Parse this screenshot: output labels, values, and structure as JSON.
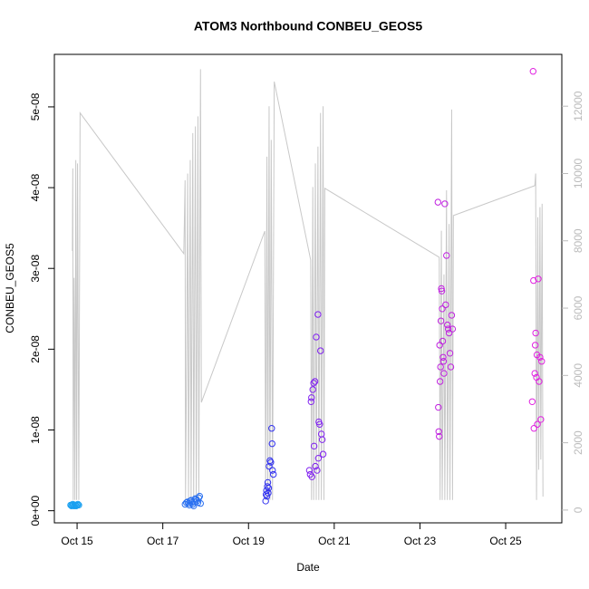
{
  "chart_data": {
    "type": "scatter",
    "title": "ATOM3 Northbound CONBEU_GEOS5",
    "x_label": "Date",
    "y_label": "CONBEU_GEOS5",
    "xlim": [
      14.47,
      26.31
    ],
    "xticks": [
      {
        "value": 15,
        "label": "Oct 15"
      },
      {
        "value": 17,
        "label": "Oct 17"
      },
      {
        "value": 19,
        "label": "Oct 19"
      },
      {
        "value": 21,
        "label": "Oct 21"
      },
      {
        "value": 23,
        "label": "Oct 23"
      },
      {
        "value": 25,
        "label": "Oct 25"
      }
    ],
    "ylim": [
      -1.5e-09,
      5.65e-08
    ],
    "yticks": [
      {
        "value": 0,
        "label": "0e+00"
      },
      {
        "value": 1e-08,
        "label": "1e-08"
      },
      {
        "value": 2e-08,
        "label": "2e-08"
      },
      {
        "value": 3e-08,
        "label": "3e-08"
      },
      {
        "value": 4e-08,
        "label": "4e-08"
      },
      {
        "value": 5e-08,
        "label": "5e-08"
      }
    ],
    "y2lim": [
      -380,
      13540
    ],
    "y2ticks": [
      0,
      2000,
      4000,
      6000,
      8000,
      10000,
      12000
    ],
    "y2_color": "#bbbbbb",
    "series": [
      {
        "style": "line",
        "axis": "y2",
        "color": "#c8c8c8",
        "x": [
          14.89,
          14.9,
          14.91,
          14.93,
          14.95,
          14.97,
          14.99,
          15.01,
          15.04,
          15.07,
          17.49,
          17.52,
          17.53,
          17.56,
          17.58,
          17.6,
          17.64,
          17.66,
          17.7,
          17.72,
          17.76,
          17.78,
          17.82,
          17.84,
          17.88,
          17.9,
          19.38,
          19.4,
          19.43,
          19.45,
          19.48,
          19.5,
          19.53,
          19.56,
          19.6,
          20.45,
          20.47,
          20.5,
          20.52,
          20.56,
          20.58,
          20.62,
          20.64,
          20.68,
          20.7,
          20.74,
          20.76,
          20.78,
          23.45,
          23.47,
          23.5,
          23.52,
          23.56,
          23.58,
          23.62,
          23.64,
          23.68,
          23.7,
          23.74,
          23.76,
          23.78,
          25.68,
          25.7,
          25.72,
          25.75,
          25.77,
          25.8,
          25.82,
          25.85,
          25.87
        ],
        "values": [
          7700,
          10150,
          300,
          6900,
          300,
          10400,
          300,
          10300,
          300,
          11800,
          7620,
          9800,
          300,
          5300,
          10000,
          300,
          10400,
          300,
          11200,
          300,
          11400,
          300,
          11700,
          300,
          13100,
          3200,
          8290,
          300,
          10500,
          300,
          12000,
          300,
          11000,
          300,
          12730,
          7430,
          300,
          9600,
          300,
          10300,
          300,
          10800,
          300,
          11800,
          300,
          12000,
          300,
          9560,
          7510,
          300,
          8300,
          300,
          7000,
          300,
          9500,
          300,
          8500,
          300,
          11900,
          300,
          8750,
          9640,
          10000,
          300,
          8700,
          1200,
          9000,
          1500,
          9100,
          400
        ]
      },
      {
        "style": "points",
        "color": "#1aa0f0",
        "x": [
          14.85,
          14.87,
          14.88,
          14.9,
          14.91,
          14.93,
          14.95,
          14.96,
          14.98,
          15.0,
          15.02,
          15.04
        ],
        "values": [
          7e-10,
          6e-10,
          7e-10,
          8e-10,
          7e-10,
          6e-10,
          7e-10,
          7e-10,
          6e-10,
          7e-10,
          8e-10,
          7e-10
        ]
      },
      {
        "style": "points",
        "color": "#2a70f0",
        "x": [
          17.52,
          17.55,
          17.58,
          17.6,
          17.62,
          17.64,
          17.66,
          17.68,
          17.7,
          17.72,
          17.74,
          17.76,
          17.78,
          17.8,
          17.82,
          17.84,
          17.86,
          17.88
        ],
        "values": [
          8e-10,
          1e-09,
          1.1e-09,
          9e-10,
          7e-10,
          1.2e-09,
          1.3e-09,
          1e-09,
          8e-10,
          6e-10,
          1.1e-09,
          1.5e-09,
          1.4e-09,
          1.2e-09,
          1e-09,
          1.6e-09,
          1.8e-09,
          9e-10
        ]
      },
      {
        "style": "points",
        "color": "#3030f0",
        "x": [
          19.4,
          19.41,
          19.42,
          19.43,
          19.44,
          19.45,
          19.46,
          19.47,
          19.48,
          19.5,
          19.52,
          19.54,
          19.55,
          19.56,
          19.58
        ],
        "values": [
          1.2e-09,
          2e-09,
          2.5e-09,
          1.8e-09,
          3e-09,
          3.5e-09,
          2.2e-09,
          2.8e-09,
          5.5e-09,
          6.2e-09,
          6e-09,
          1.02e-08,
          8.3e-09,
          5e-09,
          4.5e-09
        ]
      },
      {
        "style": "points",
        "color": "#8020f0",
        "x": [
          20.42,
          20.44,
          20.46,
          20.47,
          20.48,
          20.5,
          20.52,
          20.53,
          20.55,
          20.56,
          20.58,
          20.6,
          20.62,
          20.63,
          20.64,
          20.66,
          20.68,
          20.7,
          20.72,
          20.74
        ],
        "values": [
          5e-09,
          4.5e-09,
          1.35e-08,
          1.4e-08,
          4.2e-09,
          1.5e-08,
          1.58e-08,
          8e-09,
          1.6e-08,
          5.5e-09,
          2.15e-08,
          5e-09,
          2.43e-08,
          6.5e-09,
          1.1e-08,
          1.07e-08,
          1.98e-08,
          9.5e-09,
          8.8e-09,
          7e-09
        ]
      },
      {
        "style": "points",
        "color": "#c020e0",
        "x": [
          23.42,
          23.43,
          23.44,
          23.45,
          23.46,
          23.47,
          23.48,
          23.49,
          23.5,
          23.51,
          23.52,
          23.53,
          23.54,
          23.55,
          23.56,
          23.58,
          23.6,
          23.62,
          23.64,
          23.66,
          23.68,
          23.7,
          23.72,
          23.74,
          23.76
        ],
        "values": [
          3.82e-08,
          1.28e-08,
          9.8e-09,
          9.2e-09,
          2.05e-08,
          1.6e-08,
          1.78e-08,
          2.35e-08,
          2.75e-08,
          2.72e-08,
          2.5e-08,
          2.1e-08,
          1.9e-08,
          1.85e-08,
          1.7e-08,
          3.8e-08,
          2.55e-08,
          3.16e-08,
          2.3e-08,
          2.25e-08,
          2.2e-08,
          1.95e-08,
          1.78e-08,
          2.42e-08,
          2.25e-08
        ]
      },
      {
        "style": "points",
        "color": "#e020e0",
        "x": [
          25.62,
          25.64,
          25.65,
          25.66,
          25.68,
          25.69,
          25.7,
          25.72,
          25.73,
          25.74,
          25.76,
          25.78,
          25.8,
          25.82,
          25.84
        ],
        "values": [
          1.35e-08,
          5.44e-08,
          2.85e-08,
          1.02e-08,
          1.7e-08,
          2.05e-08,
          2.2e-08,
          1.65e-08,
          1.93e-08,
          1.07e-08,
          2.87e-08,
          1.6e-08,
          1.9e-08,
          1.13e-08,
          1.85e-08
        ]
      }
    ]
  }
}
